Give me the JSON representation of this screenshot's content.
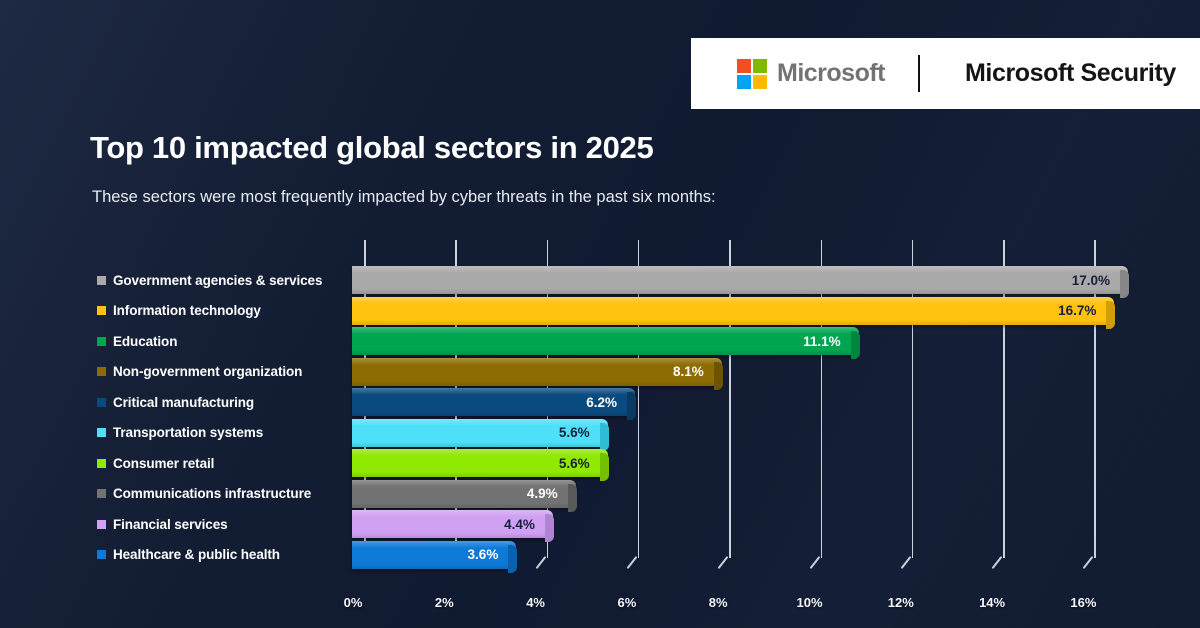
{
  "header": {
    "brand": "Microsoft",
    "product": "Microsoft Security",
    "logo_colors": {
      "red": "#f25022",
      "green": "#7fba00",
      "blue": "#00a4ef",
      "yellow": "#ffb900"
    }
  },
  "colors": {
    "background": "#111a2e",
    "grid": "#dde1e8",
    "title_text": "#ffffff",
    "subtitle_text": "#e7ebf2"
  },
  "chart_data": {
    "type": "bar",
    "orientation": "horizontal",
    "title": "Top 10 impacted global sectors in 2025",
    "subtitle": "These sectors were most frequently impacted by cyber threats in the past six months:",
    "xlim": [
      0,
      16
    ],
    "x_ticks": [
      "0%",
      "2%",
      "4%",
      "6%",
      "8%",
      "10%",
      "12%",
      "14%",
      "16%"
    ],
    "grid": true,
    "legend_position": "left",
    "categories": [
      "Government agencies & services",
      "Information technology",
      "Education",
      "Non-government organization",
      "Critical manufacturing",
      "Transportation systems",
      "Consumer retail",
      "Communications infrastructure",
      "Financial services",
      "Healthcare & public health"
    ],
    "values": [
      17.0,
      16.7,
      11.1,
      8.1,
      6.2,
      5.6,
      5.6,
      4.9,
      4.4,
      3.6
    ],
    "sectors": [
      {
        "label": "Government agencies & services",
        "value": 17.0,
        "value_label": "17.0%",
        "color": "#a9a9a9",
        "cap_color": "#878787",
        "text": "dark"
      },
      {
        "label": "Information technology",
        "value": 16.7,
        "value_label": "16.7%",
        "color": "#ffc20e",
        "cap_color": "#d19d08",
        "text": "dark"
      },
      {
        "label": "Education",
        "value": 11.1,
        "value_label": "11.1%",
        "color": "#00a550",
        "cap_color": "#00853f",
        "text": "light"
      },
      {
        "label": "Non-government organization",
        "value": 8.1,
        "value_label": "8.1%",
        "color": "#8e6c04",
        "cap_color": "#6e5303",
        "text": "light"
      },
      {
        "label": "Critical manufacturing",
        "value": 6.2,
        "value_label": "6.2%",
        "color": "#0a4b7f",
        "cap_color": "#083a63",
        "text": "light"
      },
      {
        "label": "Transportation systems",
        "value": 5.6,
        "value_label": "5.6%",
        "color": "#4de0f8",
        "cap_color": "#2fbcd6",
        "text": "dark"
      },
      {
        "label": "Consumer retail",
        "value": 5.6,
        "value_label": "5.6%",
        "color": "#90e900",
        "cap_color": "#73c000",
        "text": "dark"
      },
      {
        "label": "Communications infrastructure",
        "value": 4.9,
        "value_label": "4.9%",
        "color": "#727272",
        "cap_color": "#595959",
        "text": "light"
      },
      {
        "label": "Financial services",
        "value": 4.4,
        "value_label": "4.4%",
        "color": "#d0a0f3",
        "cap_color": "#b083d4",
        "text": "dark"
      },
      {
        "label": "Healthcare & public health",
        "value": 3.6,
        "value_label": "3.6%",
        "color": "#0d7ad8",
        "cap_color": "#0a61ae",
        "text": "light"
      }
    ]
  }
}
